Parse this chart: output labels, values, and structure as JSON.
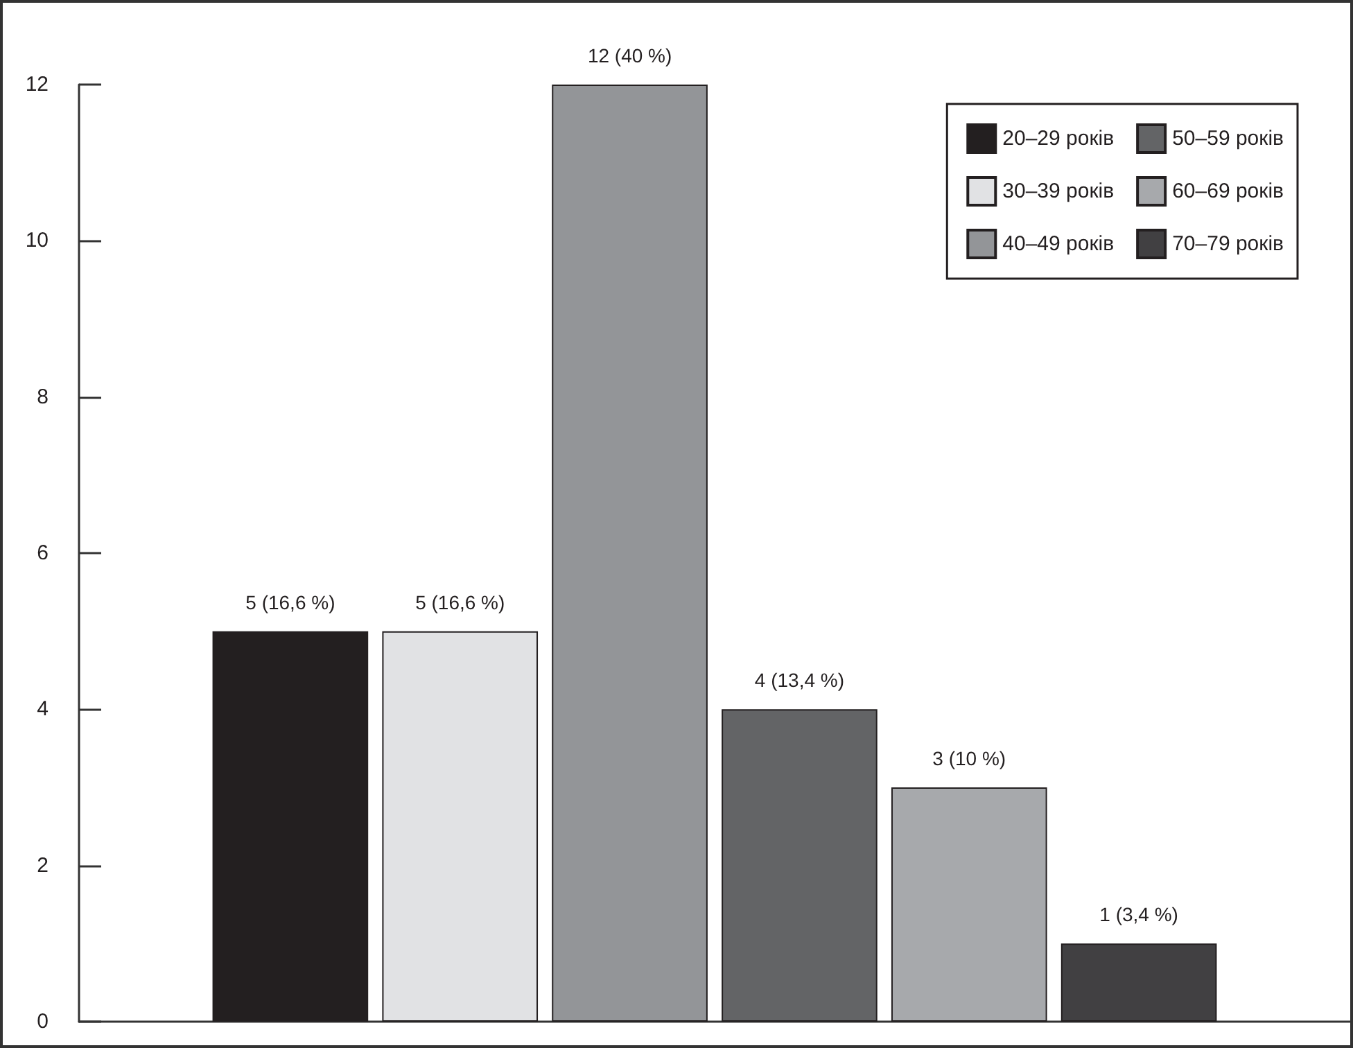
{
  "chart_data": {
    "type": "bar",
    "categories": [
      null
    ],
    "series": [
      {
        "name": "20–29 років",
        "color": "#231f20",
        "values": [
          5
        ],
        "value_labels": [
          "5 (16,6 %)"
        ]
      },
      {
        "name": "30–39 років",
        "color": "#e1e2e4",
        "values": [
          5
        ],
        "value_labels": [
          "5 (16,6 %)"
        ]
      },
      {
        "name": "40–49 років",
        "color": "#939598",
        "values": [
          12
        ],
        "value_labels": [
          "12 (40 %)"
        ]
      },
      {
        "name": "50–59 років",
        "color": "#636466",
        "values": [
          4
        ],
        "value_labels": [
          "4 (13,4 %)"
        ]
      },
      {
        "name": "60–69 років",
        "color": "#a7a9ac",
        "values": [
          3
        ],
        "value_labels": [
          "3 (10 %)"
        ]
      },
      {
        "name": "70–79 років",
        "color": "#414042",
        "values": [
          1
        ],
        "value_labels": [
          "1 (3,4 %)"
        ]
      }
    ],
    "ylim": [
      0,
      12
    ],
    "yticks": [
      0,
      2,
      4,
      6,
      8,
      10,
      12
    ],
    "grid": false,
    "legend": "top right"
  }
}
